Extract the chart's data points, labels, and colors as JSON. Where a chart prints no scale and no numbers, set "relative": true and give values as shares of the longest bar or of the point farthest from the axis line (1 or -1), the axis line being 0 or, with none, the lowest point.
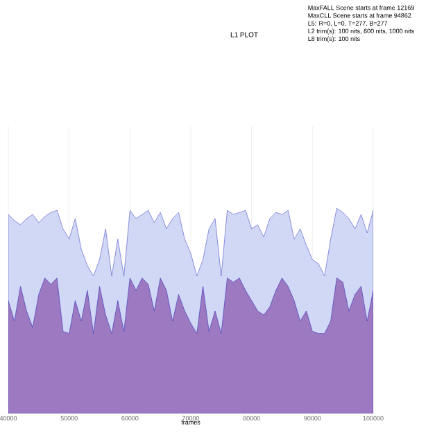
{
  "chart_data": {
    "type": "area",
    "title": "L1 PLOT",
    "xlabel": "frames",
    "relative": true,
    "annotations": [
      "MaxFALL Scene starts at frame 12169",
      "MaxCLL Scene starts at frame 94862",
      "L5: R=0, L=0, T=277, B=277",
      "L2 trim(s): 100 nits, 600 nits, 1000 nits",
      "L8 trim(s): 100 nits"
    ],
    "xlim": [
      40000,
      100000
    ],
    "xticks": [
      40000,
      50000,
      60000,
      70000,
      80000,
      90000,
      100000
    ],
    "grid": "x",
    "x": [
      40000,
      41000,
      42000,
      43000,
      44000,
      45000,
      46000,
      47000,
      48000,
      49000,
      50000,
      51000,
      52000,
      53000,
      54000,
      55000,
      56000,
      57000,
      58000,
      59000,
      60000,
      61000,
      62000,
      63000,
      64000,
      65000,
      66000,
      67000,
      68000,
      69000,
      70000,
      71000,
      72000,
      73000,
      74000,
      75000,
      76000,
      77000,
      78000,
      79000,
      80000,
      81000,
      82000,
      83000,
      84000,
      85000,
      86000,
      87000,
      88000,
      89000,
      90000,
      91000,
      92000,
      93000,
      94000,
      95000,
      96000,
      97000,
      98000,
      99000,
      100000
    ],
    "series": [
      {
        "color": "#d0d8f5",
        "values": [
          0.97,
          0.94,
          0.92,
          0.95,
          0.97,
          0.93,
          0.96,
          0.98,
          0.99,
          0.9,
          0.85,
          0.95,
          0.8,
          0.72,
          0.67,
          0.75,
          0.9,
          0.67,
          0.85,
          0.67,
          0.99,
          0.95,
          0.97,
          0.99,
          0.93,
          0.98,
          0.9,
          0.95,
          0.98,
          0.85,
          0.78,
          0.67,
          0.75,
          0.9,
          0.95,
          0.67,
          0.99,
          0.97,
          0.98,
          0.99,
          0.9,
          0.92,
          0.86,
          0.95,
          0.98,
          0.97,
          0.99,
          0.85,
          0.9,
          0.82,
          0.75,
          0.73,
          0.67,
          0.85,
          1.0,
          0.98,
          0.95,
          0.9,
          0.97,
          0.88,
          0.99
        ]
      },
      {
        "color": "#9c79c0",
        "values": [
          0.55,
          0.45,
          0.62,
          0.5,
          0.42,
          0.58,
          0.66,
          0.63,
          0.66,
          0.4,
          0.39,
          0.55,
          0.45,
          0.6,
          0.39,
          0.62,
          0.48,
          0.39,
          0.55,
          0.4,
          0.66,
          0.6,
          0.66,
          0.63,
          0.5,
          0.66,
          0.6,
          0.45,
          0.58,
          0.5,
          0.44,
          0.39,
          0.62,
          0.4,
          0.5,
          0.39,
          0.66,
          0.64,
          0.66,
          0.6,
          0.55,
          0.5,
          0.48,
          0.52,
          0.6,
          0.66,
          0.62,
          0.55,
          0.45,
          0.5,
          0.4,
          0.39,
          0.39,
          0.45,
          0.66,
          0.64,
          0.5,
          0.58,
          0.62,
          0.45,
          0.6
        ]
      }
    ]
  }
}
